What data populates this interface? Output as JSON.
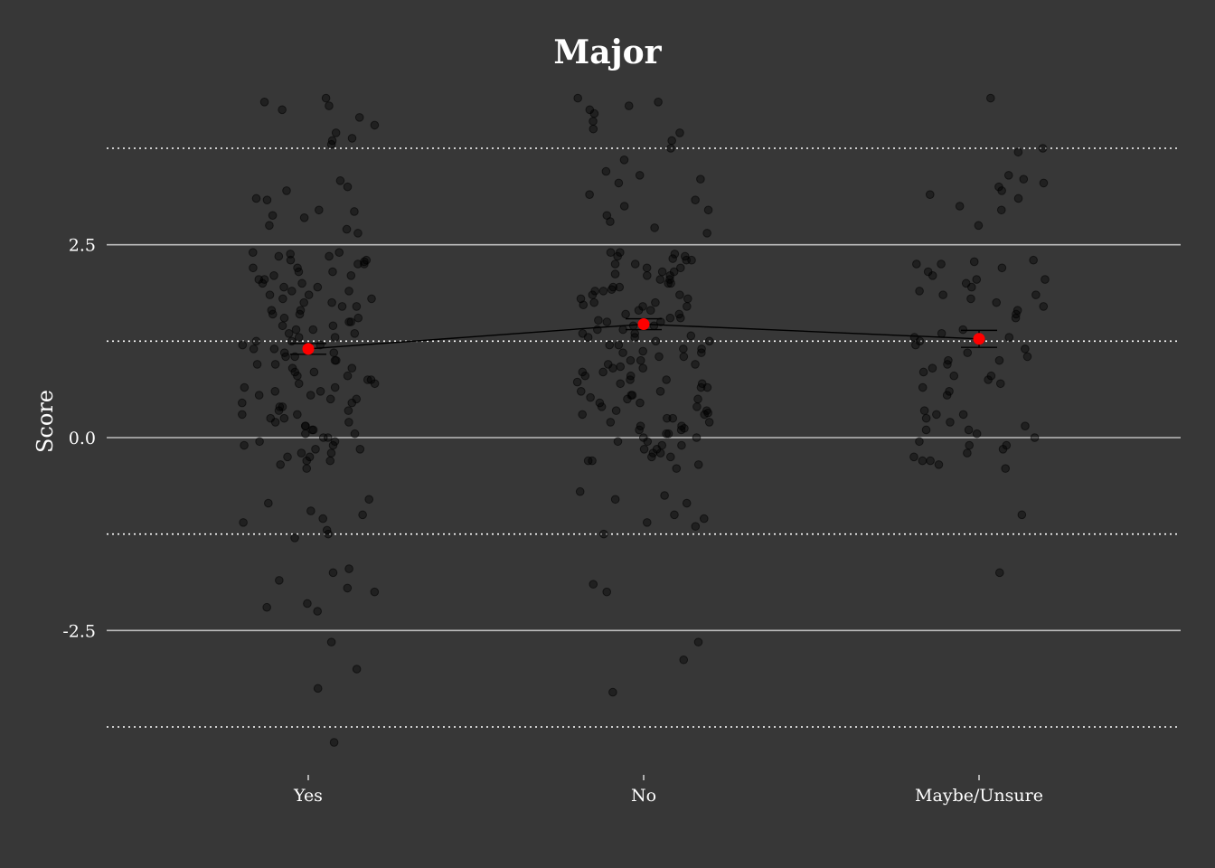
{
  "chart_data": {
    "type": "scatter",
    "title": "Major",
    "ylabel": "Score",
    "xlabel": "",
    "categories": [
      "Yes",
      "No",
      "Maybe/Unsure"
    ],
    "ylim": [
      -3.75,
      3.75
    ],
    "yticks": [
      -2.5,
      0.0,
      2.5
    ],
    "ytick_labels": [
      "-2.5",
      "0.0",
      "2.5"
    ],
    "minor_gridlines": [
      -3.75,
      -1.25,
      1.25,
      3.75
    ],
    "grid": "horizontal major solid, minor dotted",
    "legend": "none",
    "summary": {
      "name": "",
      "means": [
        1.15,
        1.47,
        1.28
      ],
      "ci_low": [
        1.08,
        1.4,
        1.17
      ],
      "ci_high": [
        1.22,
        1.54,
        1.39
      ],
      "color": "#ff0000",
      "line_color": "#000000"
    },
    "series": [
      {
        "category": "Yes",
        "values": [
          4.3,
          4.25,
          4.4,
          4.05,
          3.85,
          3.8,
          4.35,
          4.15,
          3.95,
          3.88,
          3.33,
          3.2,
          3.25,
          3.08,
          2.95,
          2.88,
          2.75,
          2.7,
          2.65,
          2.93,
          3.1,
          2.85,
          2.4,
          2.38,
          2.35,
          2.3,
          2.28,
          2.25,
          2.2,
          2.15,
          2.1,
          2.05,
          2.0,
          1.95,
          1.9,
          1.85,
          1.8,
          1.75,
          1.7,
          1.65,
          1.6,
          1.55,
          1.5,
          1.45,
          1.4,
          1.35,
          1.3,
          1.25,
          1.2,
          1.15,
          1.1,
          1.05,
          1.0,
          0.95,
          0.9,
          0.85,
          0.8,
          0.75,
          0.7,
          0.65,
          0.6,
          0.55,
          0.5,
          0.45,
          0.4,
          0.35,
          0.3,
          0.25,
          0.2,
          0.15,
          0.1,
          0.05,
          0.0,
          -0.05,
          -0.1,
          -0.15,
          -0.2,
          -0.25,
          -0.3,
          -0.35,
          -0.4,
          -0.8,
          -0.85,
          -0.95,
          -1.0,
          -1.05,
          -1.1,
          -1.2,
          -1.25,
          -1.3,
          -1.7,
          -1.75,
          -1.85,
          -1.95,
          -2.0,
          -2.15,
          -2.2,
          -2.25,
          -2.65,
          -3.0,
          -3.25,
          -3.95,
          2.4,
          2.3,
          2.2,
          2.1,
          2.0,
          1.9,
          1.8,
          1.7,
          1.6,
          1.5,
          1.4,
          1.3,
          1.2,
          1.1,
          1.0,
          0.9,
          0.8,
          0.7,
          0.6,
          0.5,
          0.4,
          0.3,
          0.2,
          0.1,
          0.0,
          -0.1,
          -0.2,
          -0.3,
          2.35,
          2.25,
          2.15,
          2.05,
          1.95,
          1.85,
          1.75,
          1.65,
          1.55,
          1.45,
          1.35,
          1.25,
          1.15,
          1.05,
          0.95,
          0.85,
          0.75,
          0.65,
          0.55,
          0.45,
          0.35,
          0.25,
          0.15,
          0.05,
          -0.05,
          -0.15,
          -0.25
        ]
      },
      {
        "category": "No",
        "values": [
          4.4,
          4.35,
          4.3,
          4.25,
          4.2,
          4.1,
          4.0,
          3.95,
          3.85,
          3.75,
          3.6,
          3.45,
          3.4,
          3.35,
          3.3,
          3.15,
          3.08,
          3.0,
          2.95,
          2.88,
          2.8,
          2.72,
          2.65,
          2.4,
          2.38,
          2.35,
          2.3,
          2.25,
          2.2,
          2.15,
          2.1,
          2.05,
          2.0,
          1.95,
          1.9,
          1.85,
          1.8,
          1.75,
          1.7,
          1.65,
          1.6,
          1.55,
          1.5,
          1.45,
          1.4,
          1.35,
          1.3,
          1.25,
          1.2,
          1.15,
          1.1,
          1.05,
          1.0,
          0.95,
          0.9,
          0.85,
          0.8,
          0.75,
          0.7,
          0.65,
          0.6,
          0.55,
          0.5,
          0.45,
          0.4,
          0.35,
          0.3,
          0.25,
          0.2,
          0.15,
          0.1,
          0.05,
          0.0,
          -0.05,
          -0.1,
          -0.15,
          -0.2,
          -0.25,
          -0.3,
          -0.35,
          -0.4,
          -0.7,
          -0.75,
          -0.8,
          -0.85,
          -1.0,
          -1.05,
          -1.1,
          -1.15,
          -1.25,
          -1.9,
          -2.0,
          -2.65,
          -2.88,
          -3.3,
          2.4,
          2.3,
          2.2,
          2.1,
          2.0,
          1.9,
          1.8,
          1.7,
          1.6,
          1.5,
          1.4,
          1.3,
          1.2,
          1.1,
          1.0,
          0.9,
          0.8,
          0.7,
          0.6,
          0.5,
          0.4,
          0.3,
          0.2,
          0.1,
          0.0,
          -0.1,
          -0.2,
          -0.3,
          2.35,
          2.25,
          2.15,
          2.05,
          1.95,
          1.85,
          1.75,
          1.65,
          1.55,
          1.45,
          1.35,
          1.25,
          1.15,
          1.05,
          0.95,
          0.85,
          0.75,
          0.65,
          0.55,
          0.45,
          0.35,
          0.25,
          0.15,
          0.05,
          -0.05,
          -0.15,
          -0.25,
          2.32,
          2.12,
          1.92,
          1.72,
          1.52,
          1.32,
          1.12,
          0.92,
          0.72,
          0.52,
          0.32,
          0.12
        ]
      },
      {
        "category": "Maybe/Unsure",
        "values": [
          4.4,
          3.75,
          3.7,
          3.4,
          3.35,
          3.3,
          3.25,
          3.2,
          3.15,
          3.1,
          3.0,
          2.95,
          2.75,
          2.3,
          2.28,
          2.25,
          2.2,
          2.15,
          2.1,
          2.05,
          2.0,
          1.95,
          1.9,
          1.85,
          1.8,
          1.75,
          1.7,
          1.65,
          1.6,
          1.4,
          1.35,
          1.3,
          1.25,
          1.2,
          1.15,
          1.1,
          1.05,
          1.0,
          0.95,
          0.9,
          0.85,
          0.8,
          0.75,
          0.7,
          0.65,
          0.6,
          0.55,
          0.35,
          0.3,
          0.25,
          0.2,
          0.15,
          0.1,
          0.05,
          0.0,
          -0.05,
          -0.1,
          -0.15,
          -0.2,
          -0.25,
          -0.3,
          -0.35,
          -0.4,
          -1.0,
          -1.75,
          2.25,
          2.05,
          1.85,
          1.55,
          1.3,
          1.0,
          0.8,
          0.3,
          0.1,
          -0.1,
          -0.3
        ]
      }
    ],
    "point_color": "#000000",
    "point_opacity": 0.42
  }
}
